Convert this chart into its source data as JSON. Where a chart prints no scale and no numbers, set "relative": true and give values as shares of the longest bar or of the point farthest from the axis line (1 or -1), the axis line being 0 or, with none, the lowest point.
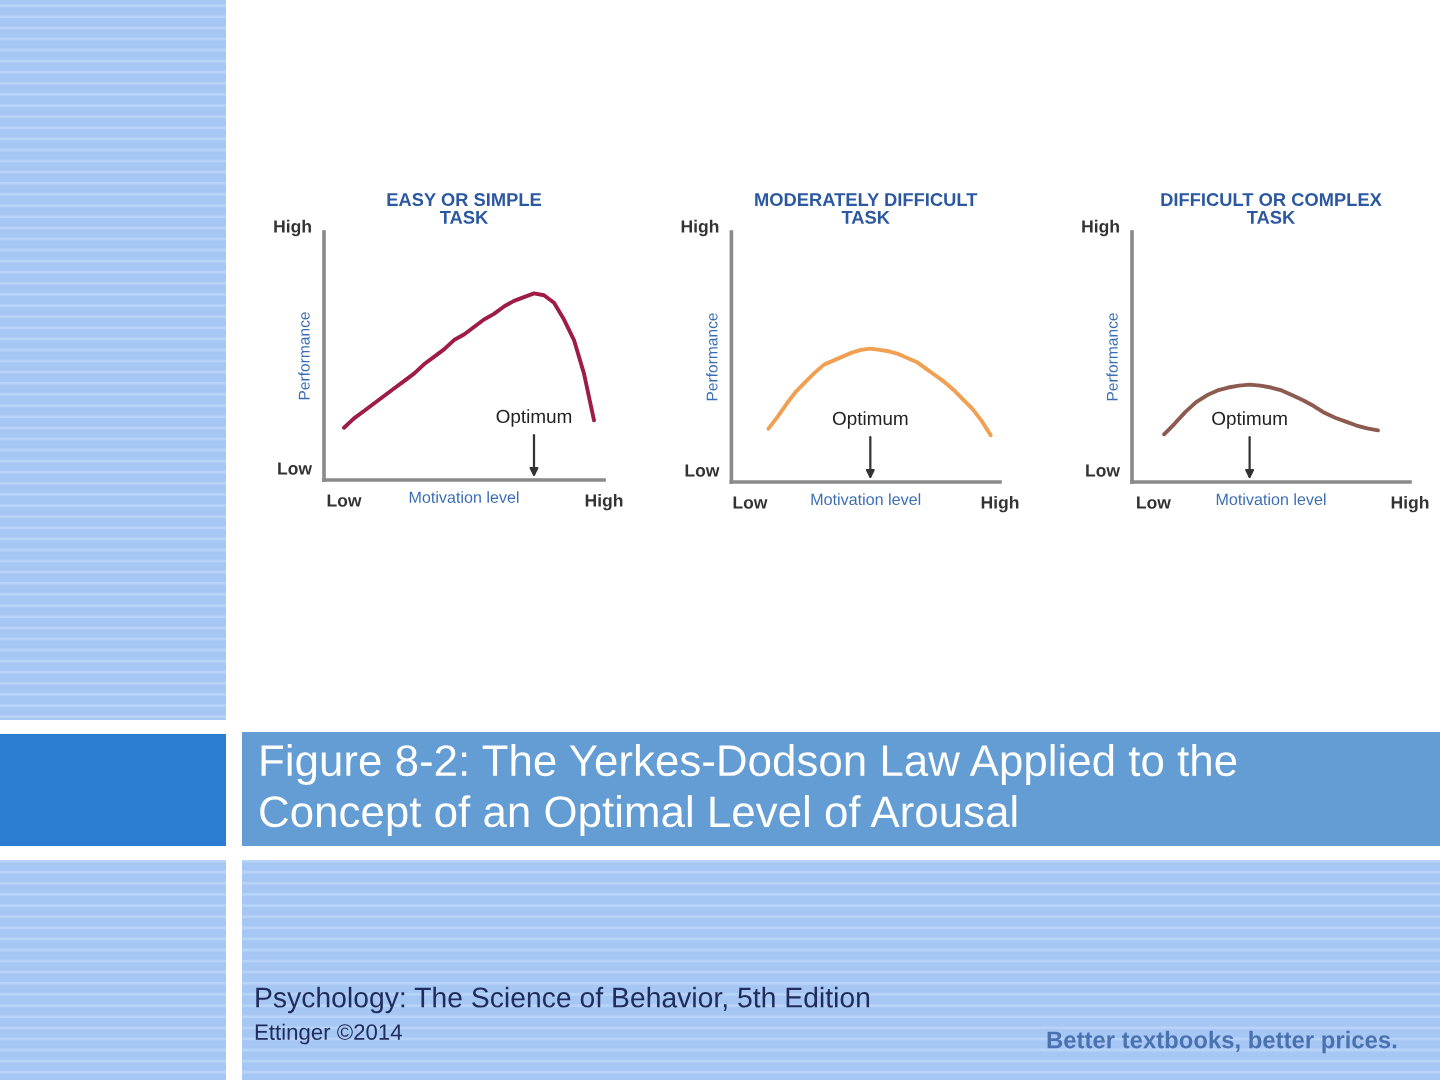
{
  "chart_data": [
    {
      "type": "line",
      "relative": true,
      "title": "EASY OR SIMPLE\nTASK",
      "xlabel": "Motivation level",
      "ylabel": "Performance",
      "categories": [
        "Low",
        null,
        null,
        null,
        null,
        null,
        null,
        null,
        null,
        null,
        null,
        null,
        null,
        null,
        null,
        null,
        null,
        null,
        null,
        null,
        null,
        null,
        null,
        null,
        null,
        null,
        "High"
      ],
      "series": [
        {
          "color": "#9e1c45",
          "values": [
            0.28,
            0.33,
            0.37,
            0.41,
            0.45,
            0.49,
            0.53,
            0.57,
            0.62,
            0.66,
            0.7,
            0.75,
            0.78,
            0.82,
            0.86,
            0.89,
            0.93,
            0.96,
            0.98,
            1.0,
            0.99,
            0.95,
            0.86,
            0.75,
            0.57,
            0.32,
            null
          ]
        }
      ],
      "annotations": [
        "High",
        "Low",
        "Optimum"
      ]
    },
    {
      "type": "line",
      "relative": true,
      "title": "MODERATELY DIFFICULT\nTASK",
      "xlabel": "Motivation level",
      "ylabel": "Performance",
      "categories": [
        "Low",
        null,
        null,
        null,
        null,
        null,
        null,
        null,
        null,
        null,
        null,
        null,
        null,
        null,
        null,
        null,
        null,
        null,
        null,
        null,
        null,
        null,
        null,
        null,
        null,
        null,
        null,
        "High"
      ],
      "series": [
        {
          "color": "#f0a050",
          "values": [
            null,
            null,
            0.4,
            0.49,
            0.59,
            0.68,
            0.75,
            0.82,
            0.88,
            0.91,
            0.94,
            0.97,
            0.99,
            1.0,
            0.99,
            0.98,
            0.96,
            0.93,
            0.9,
            0.85,
            0.8,
            0.75,
            0.69,
            0.62,
            0.55,
            0.46,
            0.35,
            null
          ]
        }
      ],
      "annotations": [
        "High",
        "Low",
        "Optimum"
      ]
    },
    {
      "type": "line",
      "relative": true,
      "title": "DIFFICULT OR COMPLEX\nTASK",
      "xlabel": "Motivation level",
      "ylabel": "Performance",
      "categories": [
        "Low",
        null,
        null,
        null,
        null,
        null,
        null,
        null,
        null,
        null,
        null,
        null,
        null,
        null,
        null,
        null,
        null,
        null,
        null,
        null,
        null,
        null,
        null,
        null,
        "High"
      ],
      "series": [
        {
          "color": "#8c5a4e",
          "values": [
            null,
            0.49,
            0.6,
            0.72,
            0.82,
            0.89,
            0.94,
            0.97,
            0.99,
            1.0,
            0.99,
            0.97,
            0.94,
            0.89,
            0.84,
            0.78,
            0.71,
            0.66,
            0.62,
            0.58,
            0.55,
            0.53,
            null,
            null,
            null
          ]
        }
      ],
      "annotations": [
        "High",
        "Low",
        "Optimum"
      ]
    },
    {
      "type": "other",
      "title": "Figure 8-2: The Yerkes-Dodson Law Applied to the\nConcept of an Optimal Level of Arousal",
      "annotations": [
        "Psychology: The Science of Behavior, 5th Edition",
        "Ettinger ©2014",
        "Better textbooks, better prices."
      ]
    }
  ]
}
